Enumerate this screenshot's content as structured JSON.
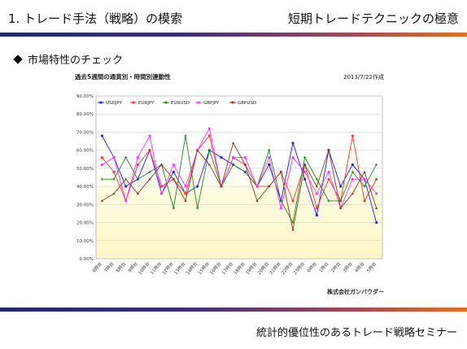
{
  "header": {
    "left_title": "1. トレード手法（戦略）の模索",
    "right_title": "短期トレードテクニックの極意"
  },
  "section_heading": "市場特性のチェック",
  "footer_text": "統計的優位性のあるトレード戦略セミナー",
  "colors": {
    "USDJPY": "#1a1aff",
    "EURJPY": "#ff3333",
    "EURUSD": "#1a8a1a",
    "GBPJPY": "#ff33ff",
    "GBPUSD": "#8b3a1a"
  },
  "chart_data": {
    "type": "line",
    "title": "過去5週間の通貨別・時間別連動性",
    "date_note": "2013/7/22作成",
    "credit": "株式会社ガンバウダー",
    "ylim": [
      0,
      90
    ],
    "yticks": [
      "0.00%",
      "10.00%",
      "20.00%",
      "30.00%",
      "40.00%",
      "50.00%",
      "60.00%",
      "70.00%",
      "80.00%",
      "90.00%"
    ],
    "categories": [
      "6時台",
      "7時台",
      "8時台",
      "9時台",
      "10時台",
      "11時台",
      "12時台",
      "13時台",
      "14時台",
      "15時台",
      "16時台",
      "17時台",
      "18時台",
      "19時台",
      "20時台",
      "21時台",
      "22時台",
      "23時台",
      "0時台",
      "1時台",
      "2時台",
      "3時台",
      "4時台",
      "5時台"
    ],
    "series": [
      {
        "name": "USDJPY",
        "values": [
          68,
          56,
          40,
          44,
          60,
          36,
          48,
          36,
          40,
          60,
          56,
          52,
          48,
          40,
          52,
          32,
          64,
          44,
          24,
          60,
          40,
          52,
          44,
          20
        ]
      },
      {
        "name": "EURJPY",
        "values": [
          56,
          48,
          32,
          52,
          60,
          40,
          44,
          36,
          60,
          68,
          40,
          56,
          52,
          40,
          40,
          48,
          32,
          52,
          28,
          44,
          32,
          68,
          32,
          44
        ]
      },
      {
        "name": "EURUSD",
        "values": [
          44,
          44,
          56,
          44,
          48,
          52,
          28,
          68,
          28,
          60,
          40,
          52,
          48,
          40,
          60,
          32,
          20,
          56,
          44,
          32,
          32,
          48,
          40,
          52
        ]
      },
      {
        "name": "GBPJPY",
        "values": [
          52,
          56,
          32,
          56,
          68,
          36,
          52,
          40,
          60,
          72,
          40,
          56,
          56,
          40,
          56,
          28,
          56,
          48,
          36,
          48,
          28,
          44,
          44,
          36
        ]
      },
      {
        "name": "GBPUSD",
        "values": [
          32,
          36,
          44,
          36,
          44,
          52,
          44,
          32,
          60,
          52,
          40,
          64,
          52,
          32,
          40,
          48,
          16,
          52,
          40,
          60,
          28,
          36,
          48,
          28
        ]
      }
    ]
  }
}
